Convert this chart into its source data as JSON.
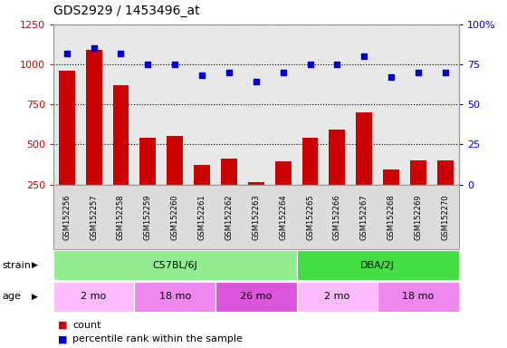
{
  "title": "GDS2929 / 1453496_at",
  "samples": [
    "GSM152256",
    "GSM152257",
    "GSM152258",
    "GSM152259",
    "GSM152260",
    "GSM152261",
    "GSM152262",
    "GSM152263",
    "GSM152264",
    "GSM152265",
    "GSM152266",
    "GSM152267",
    "GSM152268",
    "GSM152269",
    "GSM152270"
  ],
  "counts": [
    960,
    1090,
    870,
    540,
    555,
    370,
    410,
    265,
    395,
    540,
    590,
    700,
    345,
    400,
    400
  ],
  "percentile": [
    82,
    85,
    82,
    75,
    75,
    68,
    70,
    64,
    70,
    75,
    75,
    80,
    67,
    70,
    70
  ],
  "ylim_left": [
    250,
    1250
  ],
  "ylim_right": [
    0,
    100
  ],
  "yticks_left": [
    250,
    500,
    750,
    1000,
    1250
  ],
  "yticks_right": [
    0,
    25,
    50,
    75,
    100
  ],
  "bar_color": "#CC0000",
  "scatter_color": "#0000CC",
  "strain_groups": [
    {
      "label": "C57BL/6J",
      "start": 0,
      "end": 8,
      "color": "#90EE90"
    },
    {
      "label": "DBA/2J",
      "start": 9,
      "end": 14,
      "color": "#44DD44"
    }
  ],
  "age_groups": [
    {
      "label": "2 mo",
      "start": 0,
      "end": 2,
      "color": "#FFBBFF"
    },
    {
      "label": "18 mo",
      "start": 3,
      "end": 5,
      "color": "#EE88EE"
    },
    {
      "label": "26 mo",
      "start": 6,
      "end": 8,
      "color": "#DD55DD"
    },
    {
      "label": "2 mo",
      "start": 9,
      "end": 11,
      "color": "#FFBBFF"
    },
    {
      "label": "18 mo",
      "start": 12,
      "end": 14,
      "color": "#EE88EE"
    }
  ],
  "legend_count_label": "count",
  "legend_pct_label": "percentile rank within the sample",
  "strain_label": "strain",
  "age_label": "age",
  "plot_bg_color": "#E8E8E8",
  "xtick_bg_color": "#DCDCDC"
}
